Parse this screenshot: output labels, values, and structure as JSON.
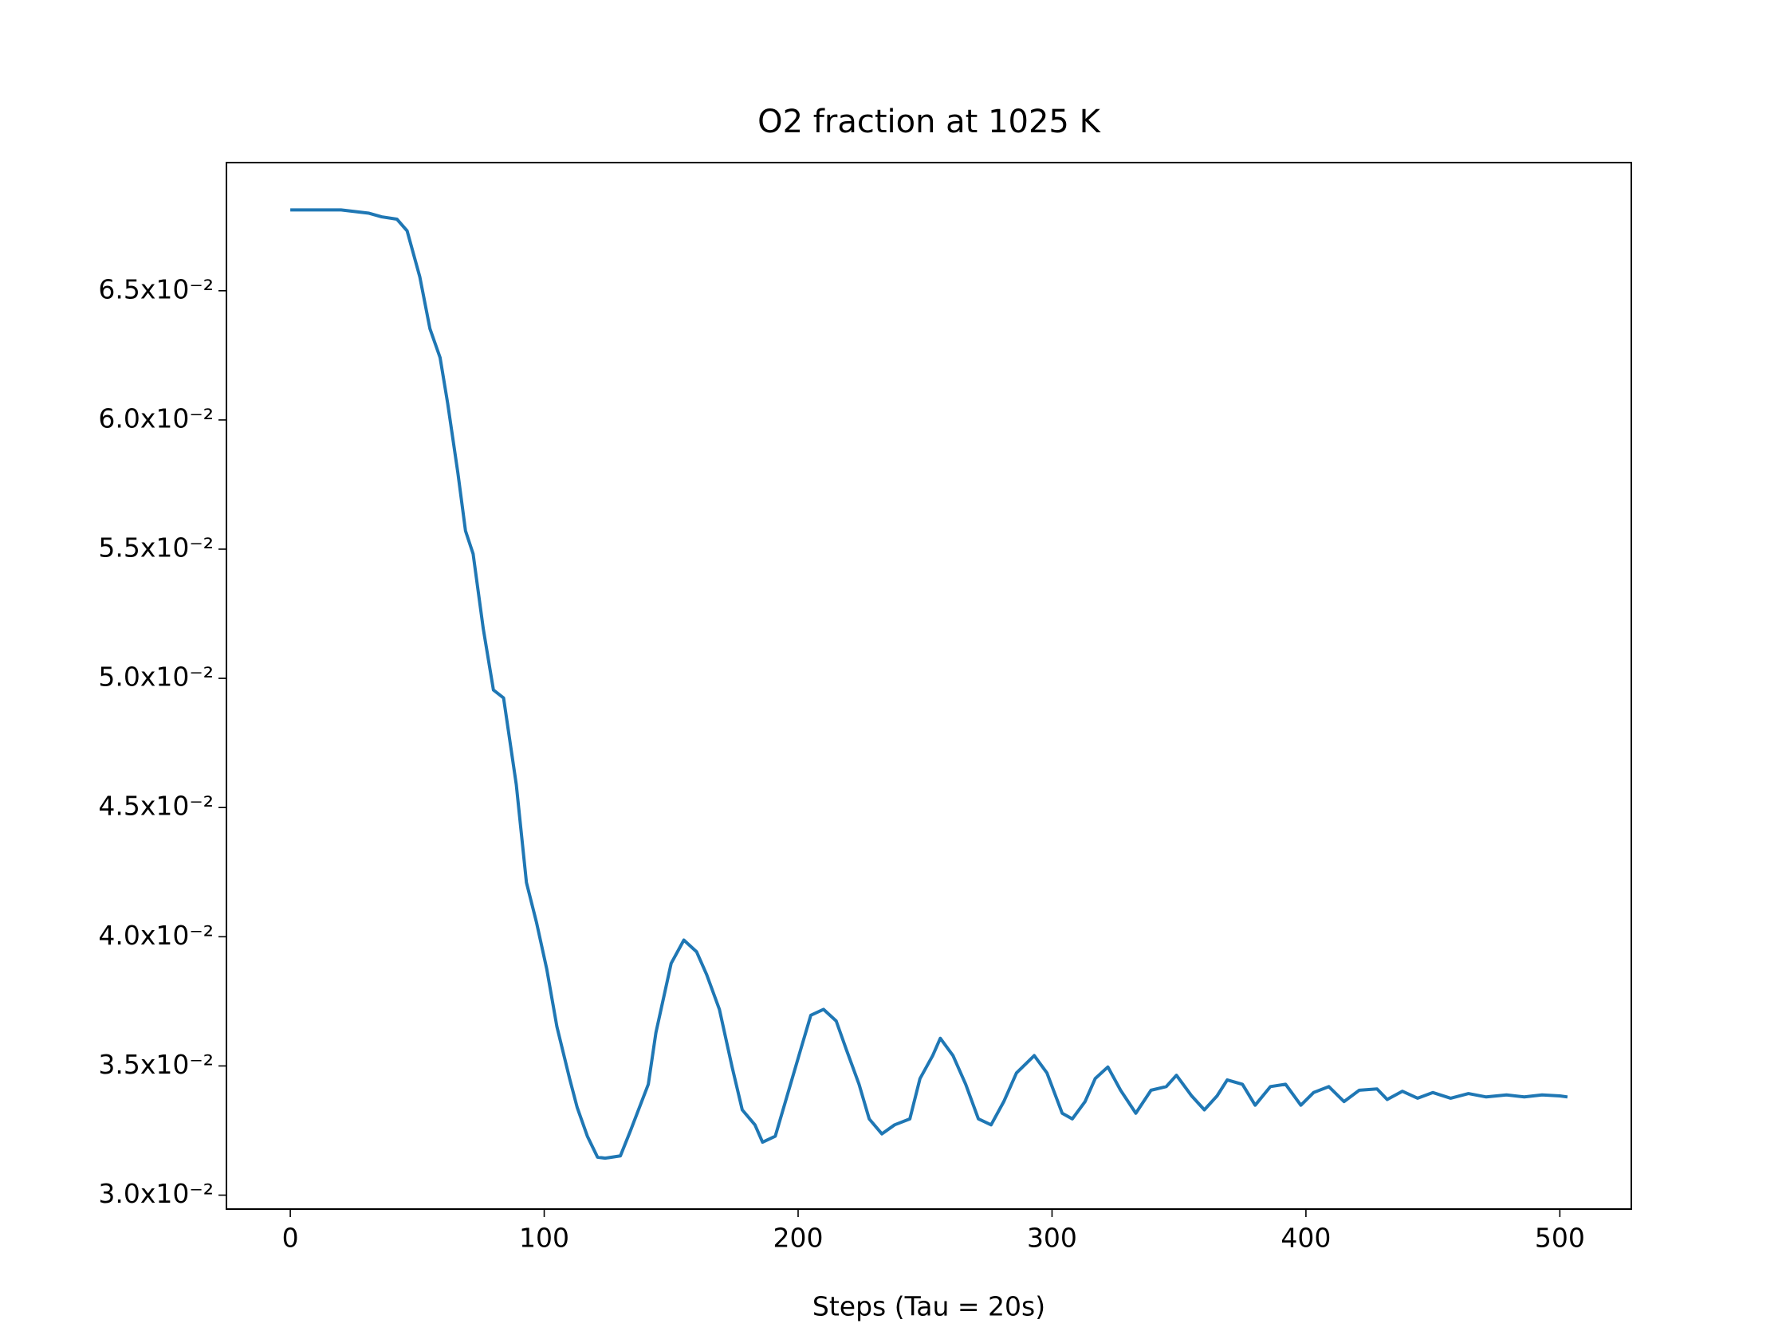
{
  "chart_data": {
    "type": "line",
    "title": "O2 fraction at 1025 K",
    "x_label": "Steps (Tau = 20s)",
    "x": [
      0,
      20,
      31,
      36,
      42,
      46,
      51,
      55,
      59,
      62,
      66,
      69,
      72,
      76,
      80,
      84,
      89,
      93,
      97,
      101,
      105,
      110,
      113,
      117,
      121,
      124,
      130,
      134,
      141,
      144,
      150,
      155,
      160,
      164,
      169,
      174,
      178,
      183,
      186,
      191,
      195,
      201,
      205,
      210,
      215,
      219,
      224,
      228,
      233,
      238,
      244,
      248,
      253,
      256,
      261,
      266,
      271,
      276,
      281,
      286,
      293,
      298,
      304,
      308,
      313,
      317,
      322,
      327,
      333,
      339,
      345,
      349,
      355,
      360,
      365,
      369,
      375,
      380,
      386,
      392,
      398,
      403,
      409,
      415,
      421,
      428,
      432,
      438,
      444,
      450,
      457,
      464,
      471,
      479,
      486,
      493,
      500,
      503
    ],
    "series": [
      {
        "name": "O2",
        "color": "#1f77b4",
        "values": [
          0.06813,
          0.06813,
          0.068,
          0.06786,
          0.06777,
          0.06732,
          0.06554,
          0.06353,
          0.06241,
          0.06063,
          0.05795,
          0.05571,
          0.05482,
          0.05192,
          0.04955,
          0.04924,
          0.04589,
          0.0421,
          0.04054,
          0.03875,
          0.03652,
          0.03451,
          0.03339,
          0.03228,
          0.03147,
          0.03143,
          0.03152,
          0.0325,
          0.03429,
          0.03629,
          0.03897,
          0.03987,
          0.03942,
          0.03853,
          0.03719,
          0.03496,
          0.0333,
          0.03272,
          0.03205,
          0.03228,
          0.03362,
          0.03563,
          0.03696,
          0.03719,
          0.03674,
          0.03563,
          0.03429,
          0.03295,
          0.03237,
          0.03272,
          0.03295,
          0.03451,
          0.0354,
          0.03607,
          0.0354,
          0.03429,
          0.03295,
          0.03272,
          0.03362,
          0.03473,
          0.0354,
          0.03473,
          0.03317,
          0.03295,
          0.03362,
          0.03451,
          0.03496,
          0.03406,
          0.03317,
          0.03406,
          0.0342,
          0.03464,
          0.03384,
          0.0333,
          0.03384,
          0.03446,
          0.03429,
          0.03348,
          0.0342,
          0.03429,
          0.03348,
          0.03397,
          0.0342,
          0.03362,
          0.03406,
          0.03411,
          0.0337,
          0.03402,
          0.03375,
          0.03397,
          0.03375,
          0.03393,
          0.0338,
          0.03388,
          0.0338,
          0.03388,
          0.03384,
          0.0338
        ]
      }
    ],
    "xlim": [
      -25.15,
      528.15
    ],
    "xticks": [
      0,
      100,
      200,
      300,
      400,
      500
    ],
    "ylim": [
      0.02946,
      0.06996
    ],
    "yticks": [
      {
        "value": 0.03,
        "label": "3.0x10⁻²"
      },
      {
        "value": 0.035,
        "label": "3.5x10⁻²"
      },
      {
        "value": 0.04,
        "label": "4.0x10⁻²"
      },
      {
        "value": 0.045,
        "label": "4.5x10⁻²"
      },
      {
        "value": 0.05,
        "label": "5.0x10⁻²"
      },
      {
        "value": 0.055,
        "label": "5.5x10⁻²"
      },
      {
        "value": 0.06,
        "label": "6.0x10⁻²"
      },
      {
        "value": 0.065,
        "label": "6.5x10⁻²"
      }
    ],
    "grid": false
  }
}
